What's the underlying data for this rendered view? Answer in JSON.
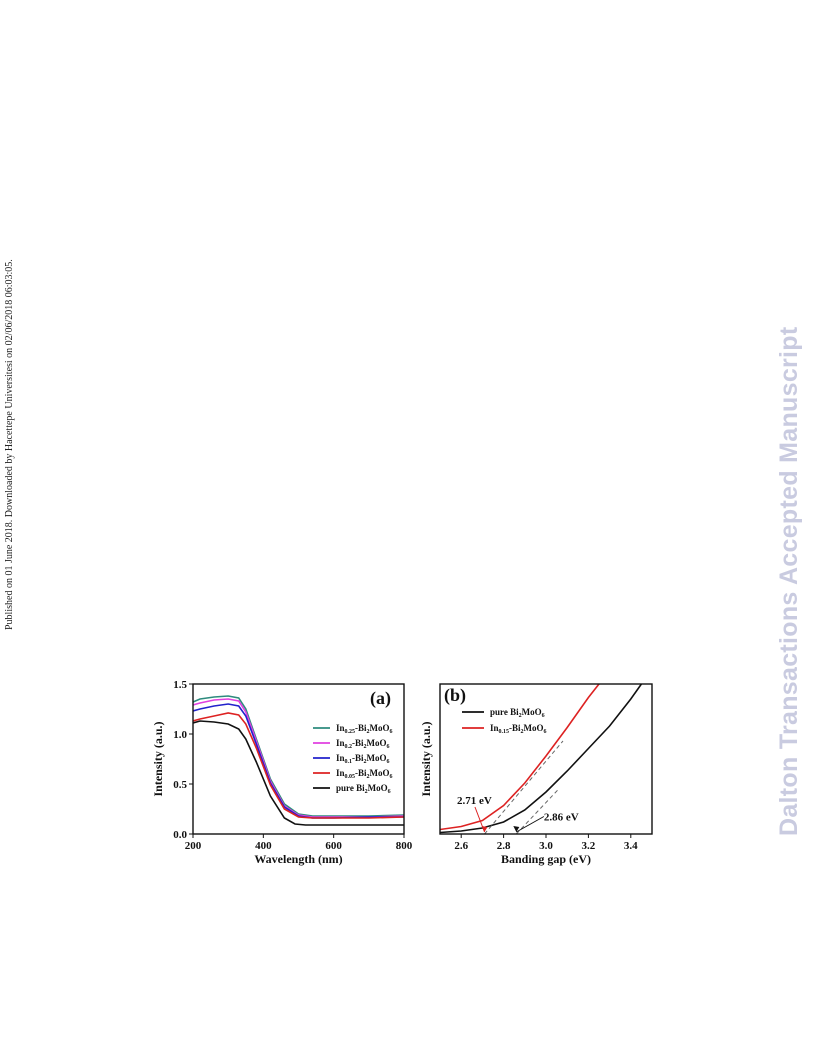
{
  "side_text": "Published on 01 June 2018. Downloaded by Hacettepe Universitesi on 02/06/2018 06:03:05.",
  "watermark": "Dalton Transactions Accepted Manuscript",
  "chart_data": [
    {
      "type": "line",
      "panel_label": "(a)",
      "xlabel": "Wavelength (nm)",
      "ylabel": "Intensity (a.u.)",
      "xlim": [
        200,
        800
      ],
      "ylim": [
        0,
        1.5
      ],
      "xticks": [
        200,
        400,
        600,
        800
      ],
      "yticks": [
        0.0,
        0.5,
        1.0,
        1.5
      ],
      "ytick_labels": [
        "0.0",
        "0.5",
        "1.0",
        "1.5"
      ],
      "legend_position": "right",
      "series": [
        {
          "name": "In0.25-Bi2MoO6",
          "label_parts": [
            "In",
            "0.25",
            "-Bi",
            "2",
            "MoO",
            "6"
          ],
          "color": "#2e8b7e",
          "x": [
            200,
            220,
            260,
            300,
            330,
            350,
            380,
            420,
            460,
            500,
            540,
            600,
            700,
            800
          ],
          "y": [
            1.32,
            1.35,
            1.37,
            1.38,
            1.36,
            1.25,
            0.95,
            0.55,
            0.3,
            0.2,
            0.18,
            0.18,
            0.18,
            0.19
          ]
        },
        {
          "name": "In0.2-Bi2MoO6",
          "label_parts": [
            "In",
            "0.2",
            "-Bi",
            "2",
            "MoO",
            "6"
          ],
          "color": "#e040e0",
          "x": [
            200,
            220,
            260,
            300,
            330,
            350,
            380,
            420,
            460,
            500,
            540,
            600,
            700,
            800
          ],
          "y": [
            1.29,
            1.31,
            1.34,
            1.35,
            1.33,
            1.22,
            0.93,
            0.53,
            0.28,
            0.19,
            0.17,
            0.17,
            0.17,
            0.18
          ]
        },
        {
          "name": "In0.1-Bi2MoO6",
          "label_parts": [
            "In",
            "0.1",
            "-Bi",
            "2",
            "MoO",
            "6"
          ],
          "color": "#2222cc",
          "x": [
            200,
            220,
            260,
            300,
            330,
            350,
            380,
            420,
            460,
            500,
            540,
            600,
            700,
            800
          ],
          "y": [
            1.23,
            1.25,
            1.28,
            1.3,
            1.28,
            1.18,
            0.9,
            0.51,
            0.27,
            0.18,
            0.16,
            0.16,
            0.17,
            0.17
          ]
        },
        {
          "name": "In0.05-Bi2MoO6",
          "label_parts": [
            "In",
            "0.05",
            "-Bi",
            "2",
            "MoO",
            "6"
          ],
          "color": "#dd2222",
          "x": [
            200,
            220,
            260,
            300,
            330,
            350,
            380,
            420,
            460,
            500,
            540,
            600,
            700,
            800
          ],
          "y": [
            1.13,
            1.15,
            1.18,
            1.21,
            1.19,
            1.1,
            0.86,
            0.49,
            0.25,
            0.17,
            0.16,
            0.16,
            0.16,
            0.17
          ]
        },
        {
          "name": "pure Bi2MoO6",
          "label_parts": [
            "pure Bi",
            "2",
            "MoO",
            "6",
            "",
            ""
          ],
          "color": "#111111",
          "x": [
            200,
            220,
            260,
            300,
            330,
            350,
            380,
            420,
            460,
            490,
            520,
            600,
            700,
            800
          ],
          "y": [
            1.11,
            1.13,
            1.12,
            1.1,
            1.05,
            0.95,
            0.72,
            0.38,
            0.16,
            0.1,
            0.09,
            0.09,
            0.09,
            0.09
          ]
        }
      ]
    },
    {
      "type": "line",
      "panel_label": "(b)",
      "xlabel": "Banding gap (eV)",
      "ylabel": "Intensity (a.u.)",
      "xlim": [
        2.5,
        3.5
      ],
      "ylim": [
        0,
        1
      ],
      "xticks": [
        2.6,
        2.8,
        3.0,
        3.2,
        3.4
      ],
      "xtick_labels": [
        "2.6",
        "2.8",
        "3.0",
        "3.2",
        "3.4"
      ],
      "legend_position": "top-left",
      "series": [
        {
          "name": "pure Bi2MoO6",
          "label_parts": [
            "pure Bi",
            "2",
            "MoO",
            "6",
            "",
            ""
          ],
          "color": "#111111",
          "x": [
            2.5,
            2.6,
            2.7,
            2.8,
            2.9,
            3.0,
            3.1,
            3.2,
            3.3,
            3.4,
            3.45
          ],
          "y": [
            0.01,
            0.02,
            0.04,
            0.08,
            0.16,
            0.28,
            0.42,
            0.57,
            0.72,
            0.9,
            1.0
          ]
        },
        {
          "name": "In0.15-Bi2MoO6",
          "label_parts": [
            "In",
            "0.15",
            "-Bi",
            "2",
            "MoO",
            "6"
          ],
          "color": "#dd2222",
          "x": [
            2.5,
            2.6,
            2.7,
            2.8,
            2.9,
            3.0,
            3.1,
            3.2,
            3.25
          ],
          "y": [
            0.03,
            0.05,
            0.09,
            0.19,
            0.34,
            0.52,
            0.71,
            0.91,
            1.0
          ]
        }
      ],
      "tangents": [
        {
          "x1": 2.71,
          "y1": 0.0,
          "x2": 3.08,
          "y2": 0.62
        },
        {
          "x1": 2.86,
          "y1": 0.0,
          "x2": 3.06,
          "y2": 0.3
        }
      ],
      "annotations": [
        {
          "text": "2.71 eV",
          "x": 2.71,
          "y": 0.0,
          "label_x": 2.58,
          "label_y": 0.2
        },
        {
          "text": "2.86 eV",
          "x": 2.86,
          "y": 0.0,
          "label_x": 2.99,
          "label_y": 0.09
        }
      ]
    }
  ]
}
